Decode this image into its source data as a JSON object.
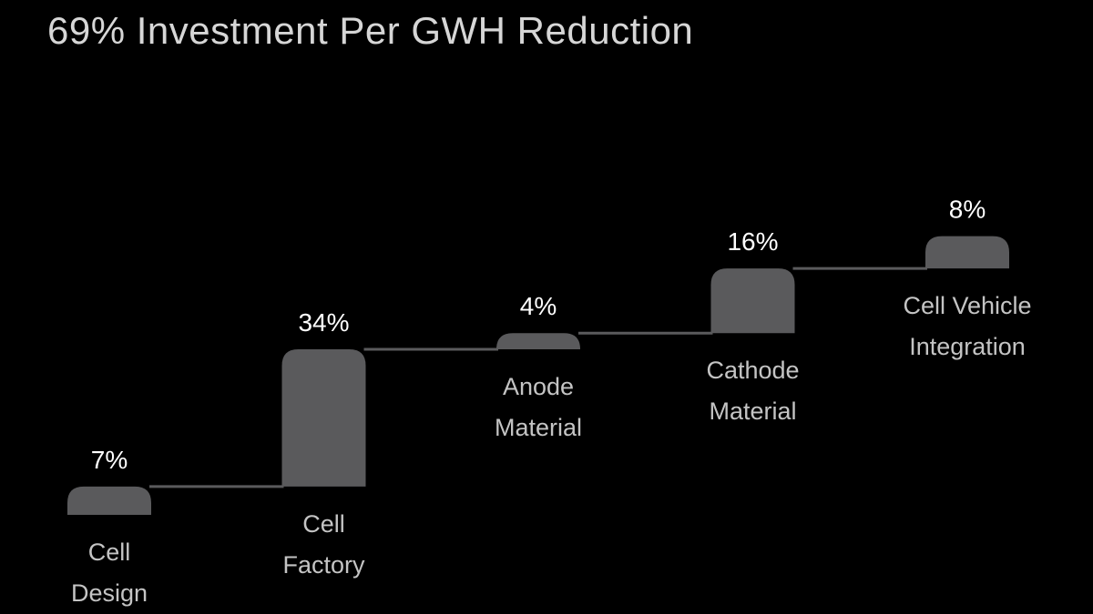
{
  "chart_data": {
    "type": "bar",
    "title": "69% Investment Per GWH Reduction",
    "categories": [
      "Cell Design",
      "Cell Factory",
      "Anode Material",
      "Cathode Material",
      "Cell Vehicle Integration"
    ],
    "category_lines": [
      [
        "Cell",
        "Design"
      ],
      [
        "Cell",
        "Factory"
      ],
      [
        "Anode",
        "Material"
      ],
      [
        "Cathode",
        "Material"
      ],
      [
        "Cell Vehicle",
        "Integration"
      ]
    ],
    "values": [
      7,
      34,
      4,
      16,
      8
    ],
    "value_labels": [
      "7%",
      "34%",
      "4%",
      "16%",
      "8%"
    ],
    "colors": {
      "bar": "#5a5a5c",
      "connector": "#5a5a5c",
      "value_text": "#ffffff",
      "category_text": "#c4c4c4",
      "title_text": "#d6d6d6",
      "background": "#000000"
    }
  }
}
